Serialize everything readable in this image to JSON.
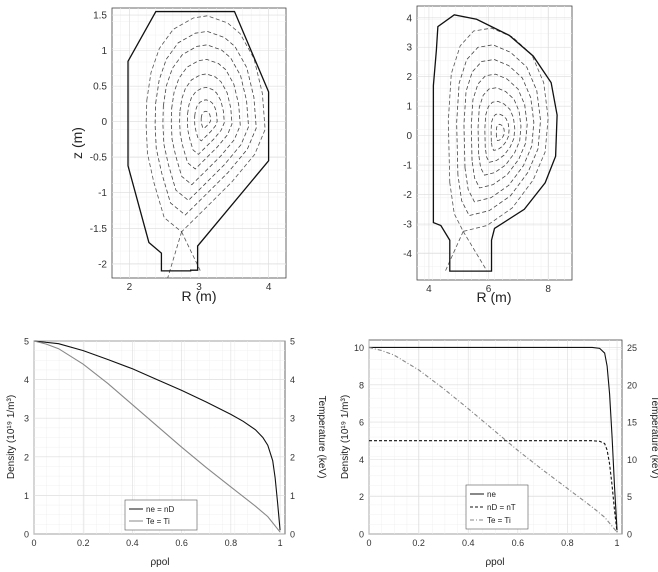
{
  "chart_data": [
    {
      "type": "line",
      "id": "equilibrium-left",
      "xlabel": "R (m)",
      "ylabel": "z (m)",
      "xlim": [
        1.75,
        4.25
      ],
      "ylim": [
        -2.2,
        1.6
      ],
      "xticks": [
        2,
        3,
        4
      ],
      "yticks": [
        1.5,
        1,
        0.5,
        0,
        -0.5,
        -1,
        -1.5,
        -2
      ],
      "grid": true,
      "wall": [
        [
          2.38,
          1.55
        ],
        [
          3.51,
          1.55
        ],
        [
          4,
          0.42
        ],
        [
          4,
          -0.55
        ],
        [
          2.98,
          -1.75
        ],
        [
          2.98,
          -2.09
        ],
        [
          2.88,
          -2.09
        ],
        [
          2.88,
          -2.1
        ],
        [
          2.46,
          -2.1
        ],
        [
          2.46,
          -1.85
        ],
        [
          2.28,
          -1.7
        ],
        [
          1.98,
          -0.62
        ],
        [
          1.98,
          0.85
        ]
      ],
      "axis_center": [
        3.1,
        0.03
      ],
      "separatrix": {
        "x_point": [
          2.75,
          -1.55
        ],
        "lcfs": [
          [
            2.25,
            0.3
          ],
          [
            2.31,
            0.69
          ],
          [
            2.43,
            1.03
          ],
          [
            2.63,
            1.3
          ],
          [
            2.92,
            1.46
          ],
          [
            3.12,
            1.49
          ],
          [
            3.41,
            1.39
          ],
          [
            3.59,
            1.24
          ],
          [
            3.79,
            0.89
          ],
          [
            3.91,
            0.4
          ],
          [
            3.95,
            -0.11
          ],
          [
            3.8,
            -0.46
          ],
          [
            3.47,
            -0.85
          ],
          [
            3.06,
            -1.25
          ],
          [
            2.75,
            -1.55
          ],
          [
            2.5,
            -1.35
          ],
          [
            2.35,
            -0.85
          ],
          [
            2.26,
            -0.45
          ],
          [
            2.24,
            -0.05
          ]
        ],
        "legs": [
          [
            [
              2.75,
              -1.55
            ],
            [
              2.55,
              -2.2
            ]
          ],
          [
            [
              2.75,
              -1.55
            ],
            [
              3.02,
              -2.1
            ]
          ]
        ]
      },
      "flux_levels": [
        0.85,
        0.72,
        0.58,
        0.44,
        0.31,
        0.19,
        0.08
      ]
    },
    {
      "type": "line",
      "id": "equilibrium-right",
      "xlabel": "R (m)",
      "ylabel": "",
      "xlim": [
        3.6,
        8.8
      ],
      "ylim": [
        -4.9,
        4.4
      ],
      "xticks": [
        4,
        6,
        8
      ],
      "yticks": [
        4,
        3,
        2,
        1,
        0,
        -1,
        -2,
        -3,
        -4
      ],
      "grid": true,
      "wall": [
        [
          4.15,
          -2.95
        ],
        [
          4.15,
          1.7
        ],
        [
          4.25,
          2.9
        ],
        [
          4.3,
          3.7
        ],
        [
          4.85,
          4.1
        ],
        [
          5.6,
          3.95
        ],
        [
          6.7,
          3.4
        ],
        [
          7.5,
          2.7
        ],
        [
          8.1,
          1.8
        ],
        [
          8.3,
          0.7
        ],
        [
          8.25,
          -0.7
        ],
        [
          7.9,
          -1.6
        ],
        [
          7.2,
          -2.5
        ],
        [
          6.2,
          -3.15
        ],
        [
          6.1,
          -3.55
        ],
        [
          6.1,
          -4.6
        ],
        [
          4.7,
          -4.6
        ],
        [
          4.7,
          -3.55
        ],
        [
          4.4,
          -3.05
        ]
      ],
      "axis_center": [
        6.4,
        0.1
      ],
      "separatrix": {
        "x_point": [
          5.15,
          -3.25
        ],
        "lcfs": [
          [
            4.7,
            -1.6
          ],
          [
            4.65,
            0.5
          ],
          [
            4.75,
            2.1
          ],
          [
            5.05,
            3.05
          ],
          [
            5.5,
            3.55
          ],
          [
            6.1,
            3.65
          ],
          [
            6.8,
            3.35
          ],
          [
            7.45,
            2.75
          ],
          [
            7.85,
            1.8
          ],
          [
            8.0,
            0.6
          ],
          [
            7.9,
            -0.55
          ],
          [
            7.5,
            -1.5
          ],
          [
            6.8,
            -2.45
          ],
          [
            5.95,
            -3.05
          ],
          [
            5.15,
            -3.25
          ],
          [
            4.85,
            -2.65
          ]
        ],
        "legs": [
          [
            [
              5.15,
              -3.25
            ],
            [
              4.55,
              -4.6
            ]
          ],
          [
            [
              5.15,
              -3.25
            ],
            [
              5.95,
              -4.6
            ]
          ]
        ]
      },
      "flux_levels": [
        0.84,
        0.7,
        0.56,
        0.43,
        0.3,
        0.18,
        0.08
      ]
    },
    {
      "type": "line",
      "id": "profiles-left",
      "xlabel": "ρpol",
      "ylabel": "Density (10¹⁹ 1/m³)",
      "ylabel2": "Temperature (keV)",
      "xlim": [
        0,
        1.02
      ],
      "ylim": [
        0,
        5
      ],
      "ylim2": [
        0,
        5
      ],
      "xticks": [
        0,
        0.2,
        0.4,
        0.6,
        0.8,
        1
      ],
      "xtick_labels": [
        "0",
        "0.2",
        "0.4",
        "0.6",
        "0.8",
        "1"
      ],
      "yticks": [
        0,
        1,
        2,
        3,
        4,
        5
      ],
      "yticks2": [
        0,
        1,
        2,
        3,
        4,
        5
      ],
      "grid": true,
      "legend_position": "bottom-center",
      "series": [
        {
          "name": "ne = nD",
          "axis": "left",
          "style": "solid",
          "color": "#111111",
          "x": [
            0,
            0.1,
            0.2,
            0.3,
            0.4,
            0.5,
            0.6,
            0.7,
            0.8,
            0.85,
            0.9,
            0.93,
            0.95,
            0.97,
            0.98,
            0.99,
            1.0
          ],
          "y": [
            5,
            4.93,
            4.75,
            4.52,
            4.28,
            4.0,
            3.72,
            3.42,
            3.1,
            2.92,
            2.7,
            2.5,
            2.3,
            1.9,
            1.45,
            0.8,
            0.1
          ]
        },
        {
          "name": "Te = Ti",
          "axis": "right",
          "style": "solid",
          "color": "#888888",
          "x": [
            0,
            0.05,
            0.1,
            0.2,
            0.3,
            0.4,
            0.5,
            0.6,
            0.7,
            0.8,
            0.9,
            0.95,
            1.0
          ],
          "y": [
            5,
            4.92,
            4.8,
            4.4,
            3.9,
            3.35,
            2.8,
            2.25,
            1.72,
            1.22,
            0.72,
            0.45,
            0.05
          ]
        }
      ]
    },
    {
      "type": "line",
      "id": "profiles-right",
      "xlabel": "ρpol",
      "ylabel": "Density (10¹⁹ 1/m³)",
      "ylabel2": "Temperature (keV)",
      "xlim": [
        0,
        1.02
      ],
      "ylim": [
        0,
        10.4
      ],
      "ylim2": [
        0,
        26
      ],
      "xticks": [
        0,
        0.2,
        0.4,
        0.6,
        0.8,
        1
      ],
      "xtick_labels": [
        "0",
        "0.2",
        "0.4",
        "0.6",
        "0.8",
        "1"
      ],
      "yticks": [
        0,
        2,
        4,
        6,
        8,
        10
      ],
      "yticks2": [
        0,
        5,
        10,
        15,
        20,
        25
      ],
      "grid": true,
      "legend_position": "bottom-left",
      "series": [
        {
          "name": "ne",
          "axis": "left",
          "style": "solid",
          "color": "#111111",
          "x": [
            0,
            0.5,
            0.9,
            0.93,
            0.95,
            0.96,
            0.97,
            0.98,
            0.99,
            1.0
          ],
          "y": [
            10,
            10,
            10,
            9.95,
            9.7,
            9.0,
            7.5,
            5.2,
            2.5,
            0.2
          ]
        },
        {
          "name": "nD = nT",
          "axis": "left",
          "style": "dashed",
          "color": "#111111",
          "x": [
            0,
            0.5,
            0.9,
            0.93,
            0.95,
            0.96,
            0.97,
            0.98,
            0.99,
            1.0
          ],
          "y": [
            5,
            5,
            5,
            4.97,
            4.85,
            4.5,
            3.75,
            2.6,
            1.25,
            0.1
          ]
        },
        {
          "name": "Te = Ti",
          "axis": "right",
          "style": "dashdot",
          "color": "#888888",
          "x": [
            0,
            0.05,
            0.1,
            0.2,
            0.3,
            0.4,
            0.5,
            0.6,
            0.7,
            0.8,
            0.9,
            0.95,
            1.0
          ],
          "y": [
            25,
            24.6,
            24.0,
            22.0,
            19.5,
            16.8,
            14.0,
            11.2,
            8.6,
            6.1,
            3.6,
            2.25,
            0.25
          ]
        }
      ]
    }
  ]
}
